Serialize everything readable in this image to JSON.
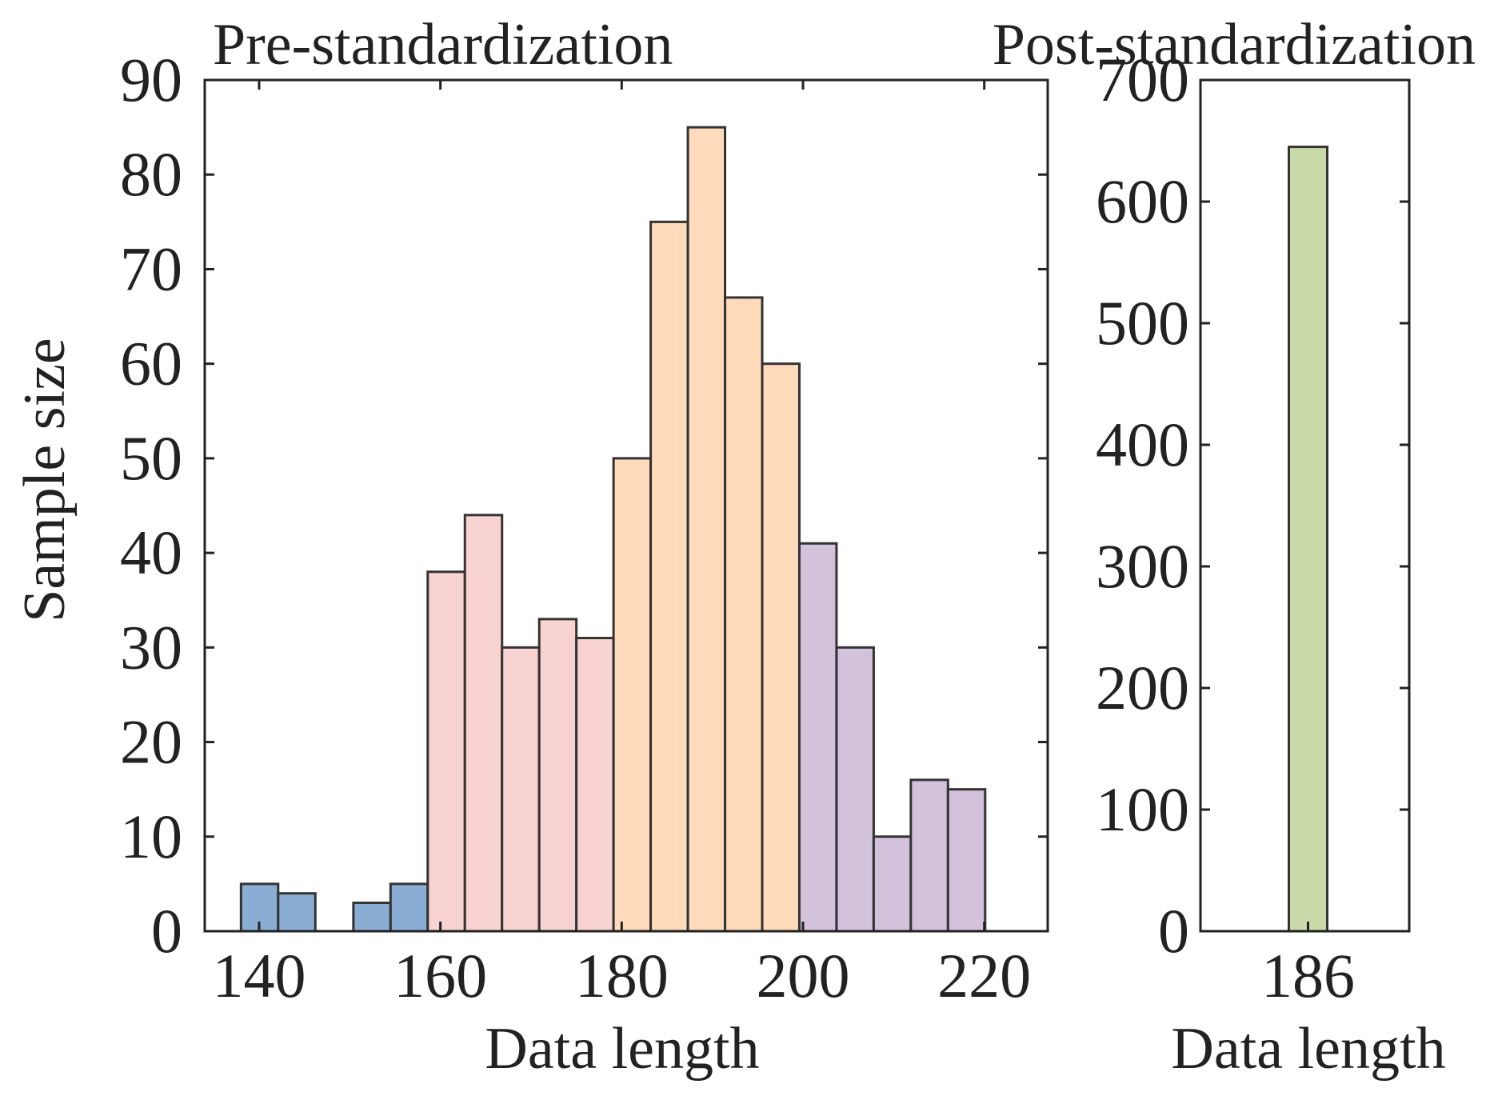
{
  "chart_data": [
    {
      "type": "bar",
      "title": "Pre-standardization",
      "xlabel": "Data length",
      "ylabel": "Sample size",
      "xlim": [
        134,
        227
      ],
      "ylim": [
        0,
        90
      ],
      "xticks": [
        140,
        160,
        180,
        200,
        220
      ],
      "yticks": [
        0,
        10,
        20,
        30,
        40,
        50,
        60,
        70,
        80,
        90
      ],
      "bin_width": 4.1,
      "groups": [
        {
          "name": "group-1",
          "color": "#8AAED3"
        },
        {
          "name": "group-2",
          "color": "#F8D3D1"
        },
        {
          "name": "group-3",
          "color": "#FFDABB"
        },
        {
          "name": "group-4",
          "color": "#D2C2DC"
        }
      ],
      "bars": [
        {
          "x_start": 138.0,
          "value": 5,
          "group": 0
        },
        {
          "x_start": 142.1,
          "value": 4,
          "group": 0
        },
        {
          "x_start": 150.4,
          "value": 3,
          "group": 0
        },
        {
          "x_start": 154.5,
          "value": 5,
          "group": 0
        },
        {
          "x_start": 158.6,
          "value": 38,
          "group": 1
        },
        {
          "x_start": 162.7,
          "value": 44,
          "group": 1
        },
        {
          "x_start": 166.8,
          "value": 30,
          "group": 1
        },
        {
          "x_start": 170.9,
          "value": 33,
          "group": 1
        },
        {
          "x_start": 175.0,
          "value": 31,
          "group": 1
        },
        {
          "x_start": 179.1,
          "value": 50,
          "group": 2
        },
        {
          "x_start": 183.2,
          "value": 75,
          "group": 2
        },
        {
          "x_start": 187.3,
          "value": 85,
          "group": 2
        },
        {
          "x_start": 191.4,
          "value": 67,
          "group": 2
        },
        {
          "x_start": 195.5,
          "value": 60,
          "group": 2
        },
        {
          "x_start": 199.6,
          "value": 41,
          "group": 3
        },
        {
          "x_start": 203.7,
          "value": 30,
          "group": 3
        },
        {
          "x_start": 207.8,
          "value": 10,
          "group": 3
        },
        {
          "x_start": 211.9,
          "value": 16,
          "group": 3
        },
        {
          "x_start": 216.0,
          "value": 15,
          "group": 3
        }
      ]
    },
    {
      "type": "bar",
      "title": "Post-standardization",
      "xlabel": "Data length",
      "ylabel": "",
      "categories": [
        "186"
      ],
      "values": [
        645
      ],
      "ylim": [
        0,
        700
      ],
      "yticks": [
        0,
        100,
        200,
        300,
        400,
        500,
        600,
        700
      ],
      "color": "#C9D9A8"
    }
  ]
}
